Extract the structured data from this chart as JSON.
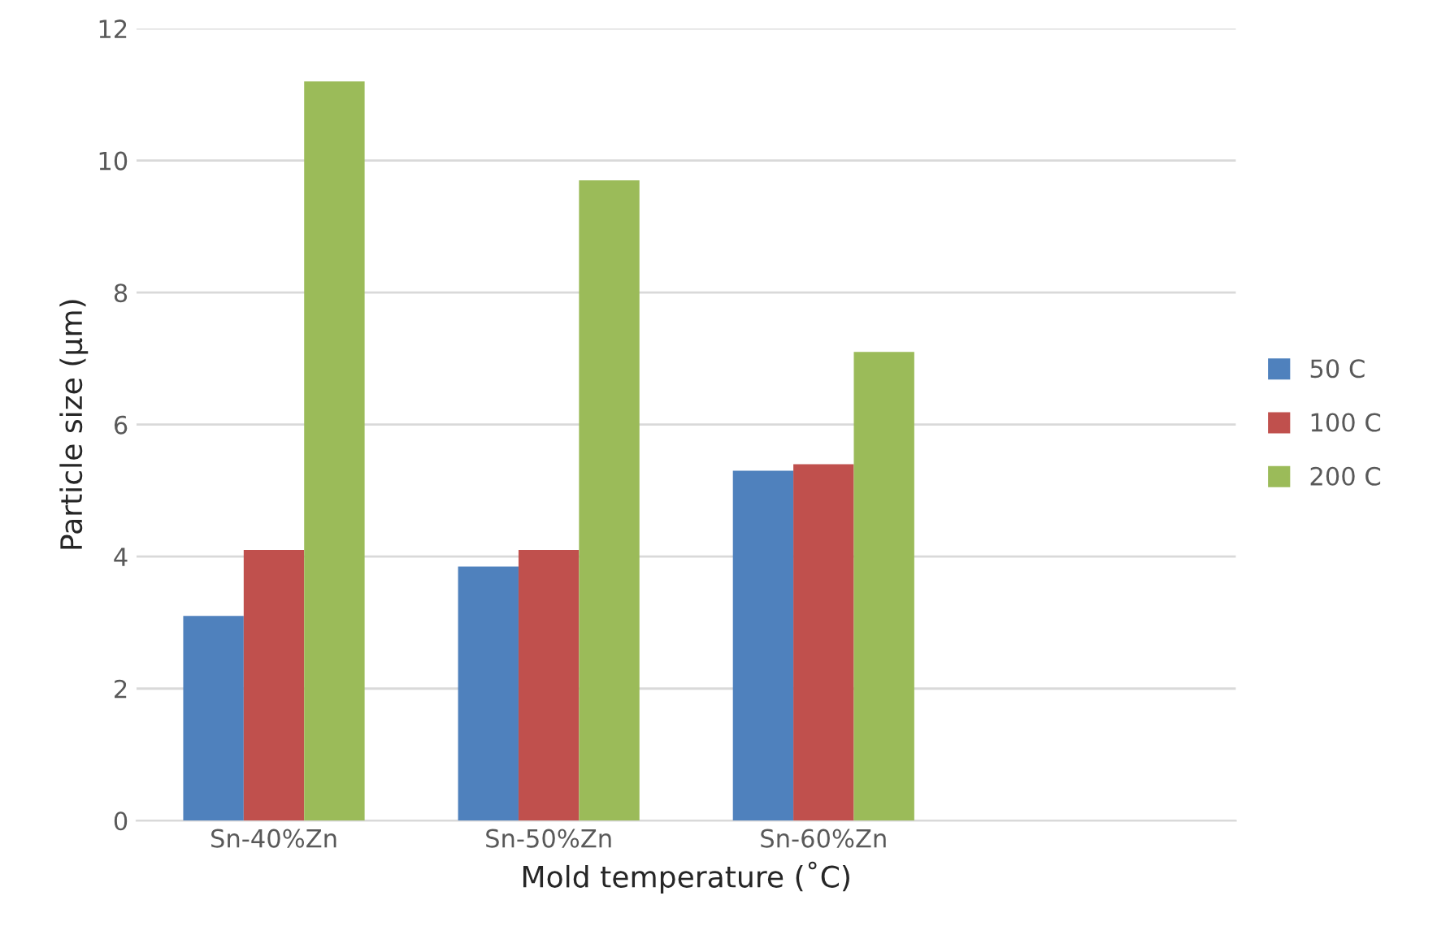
{
  "chart_data": {
    "type": "bar",
    "xlabel": "Mold temperature (˚C)",
    "ylabel": "Particle size (µm)",
    "categories": [
      "Sn-40%Zn",
      "Sn-50%Zn",
      "Sn-60%Zn",
      null
    ],
    "series": [
      {
        "name": "50 C",
        "color": "#4f81bd",
        "values": [
          3.1,
          3.85,
          5.3,
          null
        ]
      },
      {
        "name": "100 C",
        "color": "#c0504d",
        "values": [
          4.1,
          4.1,
          5.4,
          null
        ]
      },
      {
        "name": "200 C",
        "color": "#9bbb59",
        "values": [
          11.2,
          9.7,
          7.1,
          null
        ]
      }
    ],
    "ylim": [
      0,
      12
    ],
    "yticks": [
      0,
      2,
      4,
      6,
      8,
      10,
      12
    ],
    "grid": "y",
    "legend": "right"
  }
}
